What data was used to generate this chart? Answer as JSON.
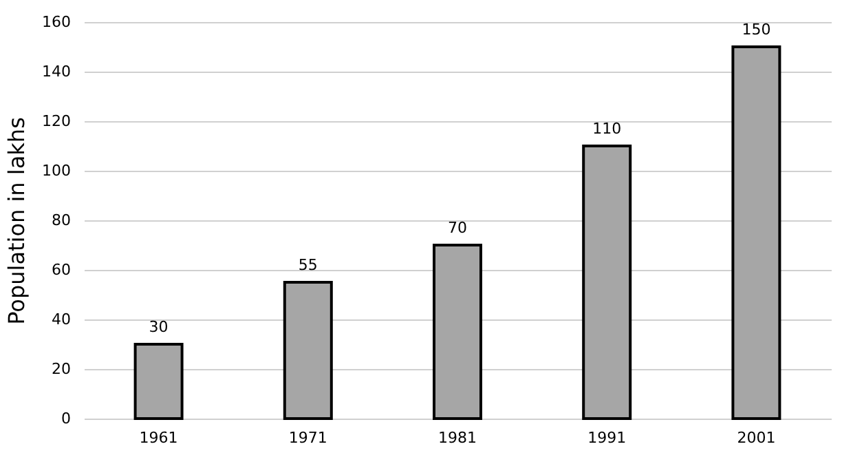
{
  "chart_data": {
    "type": "bar",
    "ylabel": "Population in lakhs",
    "categories": [
      "1961",
      "1971",
      "1981",
      "1991",
      "2001"
    ],
    "series": [
      {
        "color": "#a6a6a6",
        "values": [
          30,
          55,
          70,
          110,
          150
        ]
      }
    ],
    "ylim": [
      0,
      160
    ],
    "yticks": [
      0,
      20,
      40,
      60,
      80,
      100,
      120,
      140,
      160
    ],
    "grid": "y",
    "data_labels": true
  }
}
